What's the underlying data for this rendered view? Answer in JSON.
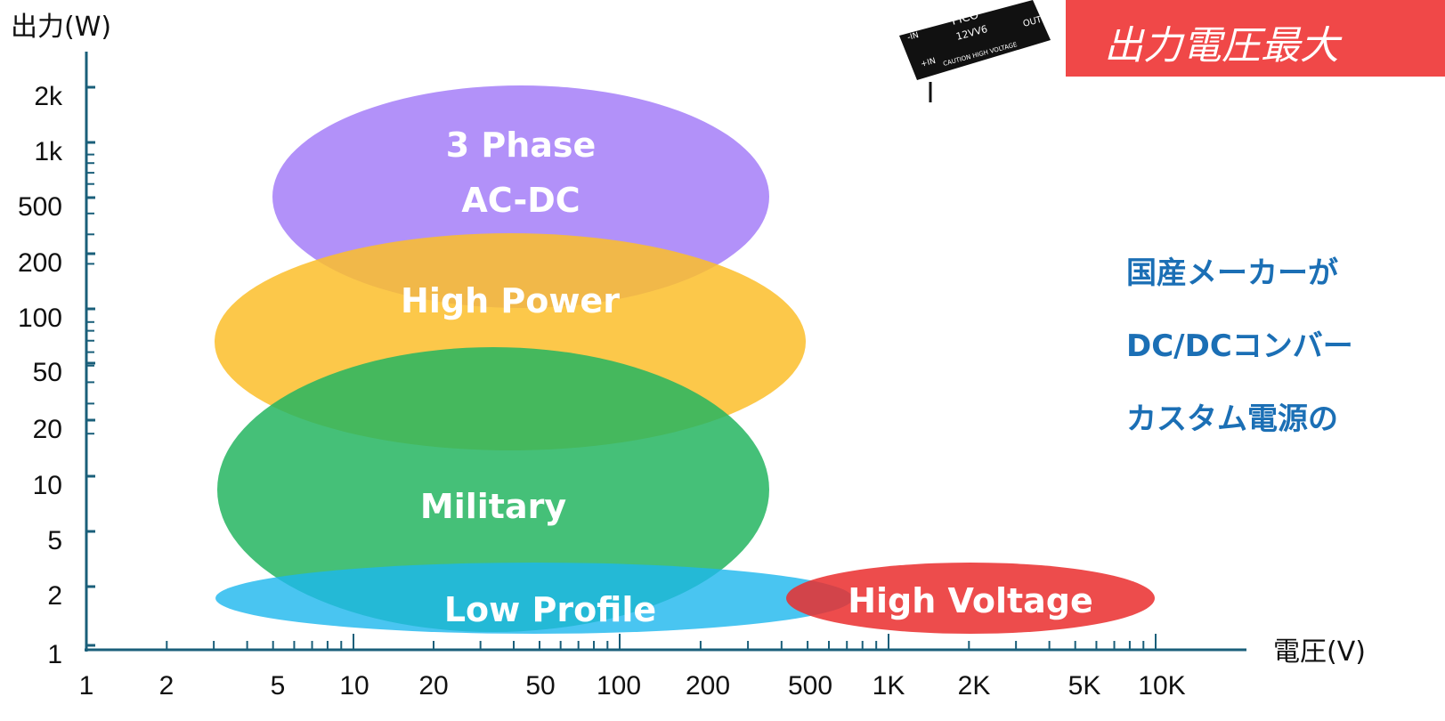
{
  "y_axis": {
    "title": "出力(W)",
    "ticks": [
      "2k",
      "1k",
      "500",
      "200",
      "100",
      "50",
      "20",
      "10",
      "5",
      "2",
      "1"
    ]
  },
  "x_axis": {
    "title": "電圧(V)",
    "ticks": [
      "1",
      "2",
      "5",
      "10",
      "20",
      "50",
      "100",
      "200",
      "500",
      "1K",
      "2K",
      "5K",
      "10K"
    ]
  },
  "regions": [
    {
      "label": [
        "3 Phase",
        "AC-DC"
      ]
    },
    {
      "label": [
        "High Power"
      ]
    },
    {
      "label": [
        "Military"
      ]
    },
    {
      "label": [
        "Low Profile"
      ]
    },
    {
      "label": [
        "High Voltage"
      ]
    }
  ],
  "product_image": {
    "texts": [
      "PICO",
      "12VV6",
      "OUT+",
      "-IN",
      "+IN",
      "CAUTION HIGH VOLTAGE"
    ]
  },
  "banner": "出力電圧最大",
  "side_text": [
    "国産メーカーが",
    "DC/DCコンバー",
    "カスタム電源の"
  ]
}
